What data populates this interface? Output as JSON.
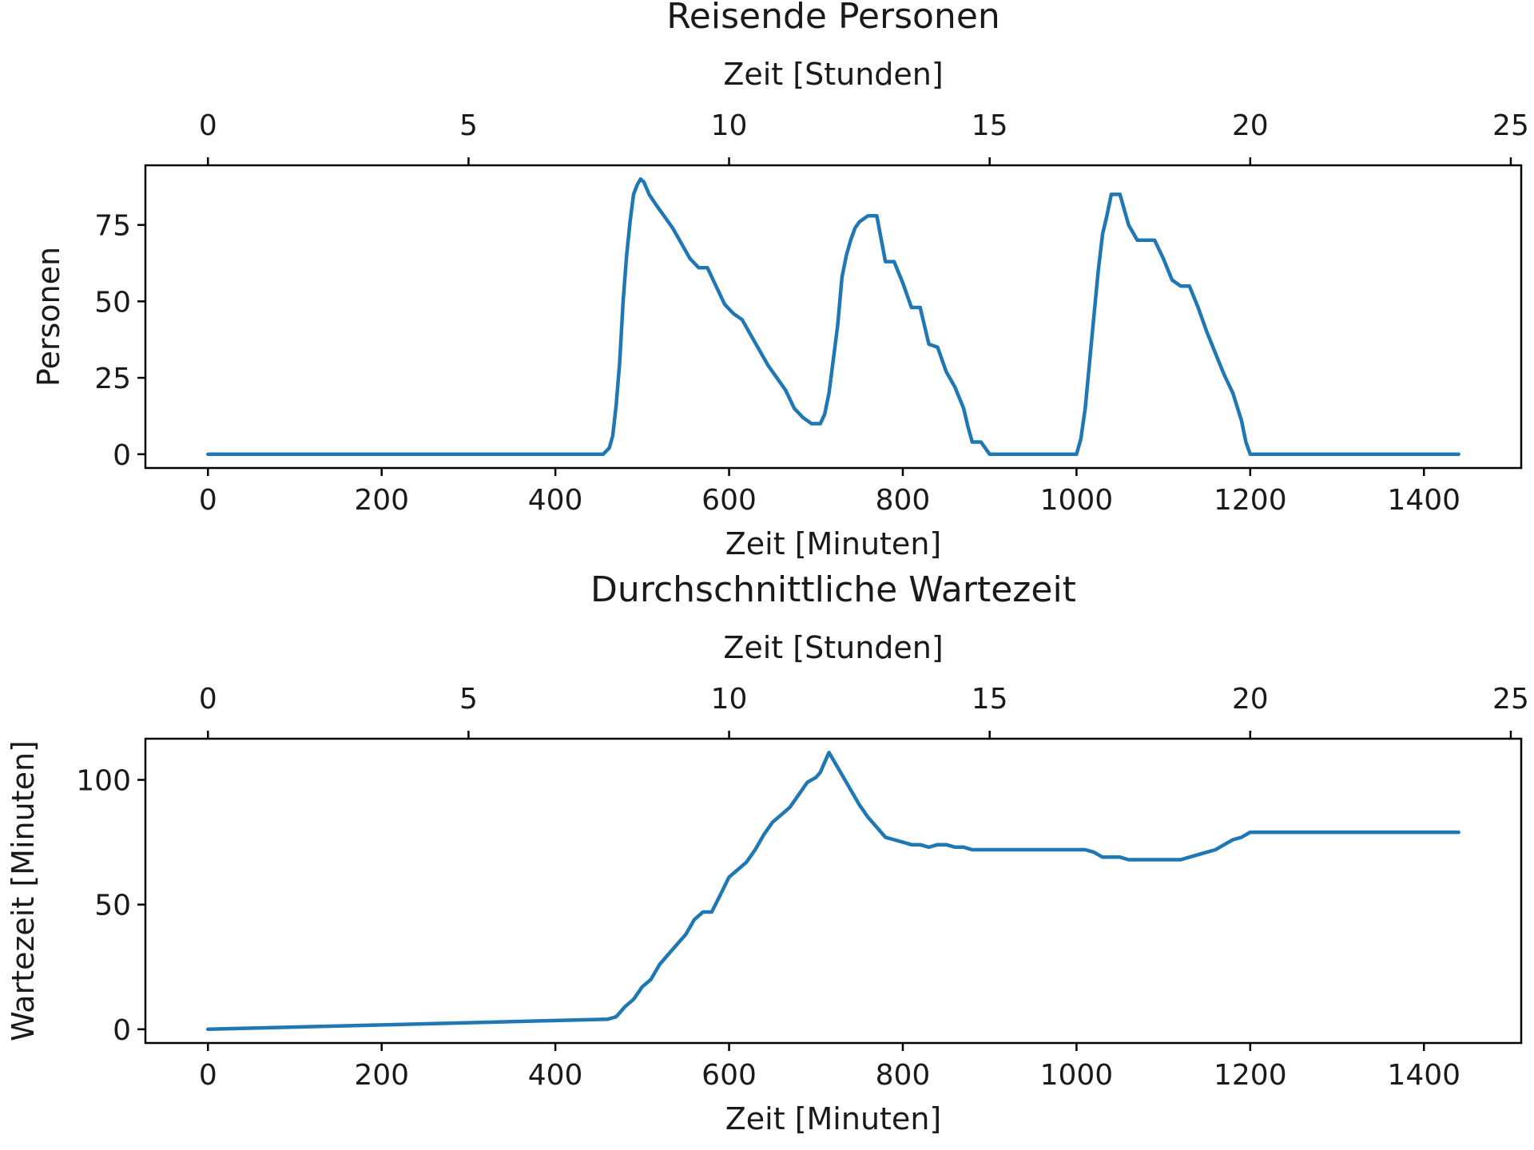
{
  "colors": {
    "series": "#1f77b4",
    "axes": "#000000",
    "background": "#ffffff"
  },
  "chart_data": [
    {
      "type": "line",
      "title": "Reisende Personen",
      "xlabel": "Zeit [Minuten]",
      "xlabel_top": "Zeit [Stunden]",
      "ylabel": "Personen",
      "xlim": [
        -72,
        1512
      ],
      "ylim": [
        -4.5,
        94.5
      ],
      "xticks": [
        0,
        200,
        400,
        600,
        800,
        1000,
        1200,
        1400
      ],
      "xticks_top": [
        0,
        5,
        10,
        15,
        20,
        25
      ],
      "yticks": [
        0,
        25,
        50,
        75
      ],
      "grid": false,
      "series": [
        {
          "x": [
            0,
            455,
            462,
            466,
            470,
            474,
            478,
            482,
            486,
            490,
            494,
            498,
            502,
            508,
            515,
            525,
            535,
            545,
            555,
            565,
            575,
            585,
            595,
            605,
            615,
            625,
            635,
            645,
            655,
            665,
            675,
            685,
            690,
            695,
            700,
            705,
            710,
            715,
            720,
            725,
            730,
            735,
            740,
            745,
            750,
            755,
            760,
            765,
            770,
            780,
            790,
            800,
            810,
            820,
            830,
            840,
            850,
            860,
            870,
            875,
            880,
            890,
            900,
            1000,
            1005,
            1010,
            1015,
            1020,
            1025,
            1030,
            1035,
            1040,
            1050,
            1060,
            1070,
            1080,
            1090,
            1100,
            1110,
            1120,
            1130,
            1140,
            1150,
            1160,
            1170,
            1180,
            1190,
            1195,
            1200,
            1440
          ],
          "y": [
            0,
            0,
            2,
            6,
            16,
            30,
            50,
            65,
            76,
            85,
            88,
            90,
            89,
            85,
            82,
            78,
            74,
            69,
            64,
            61,
            61,
            55,
            49,
            46,
            44,
            39,
            34,
            29,
            25,
            21,
            15,
            12,
            11,
            10,
            10,
            10,
            13,
            20,
            31,
            42,
            58,
            65,
            70,
            74,
            76,
            77,
            78,
            78,
            78,
            63,
            63,
            56,
            48,
            48,
            36,
            35,
            27,
            22,
            15,
            9,
            4,
            4,
            0,
            0,
            5,
            15,
            30,
            45,
            60,
            72,
            78,
            85,
            85,
            75,
            70,
            70,
            70,
            64,
            57,
            55,
            55,
            48,
            40,
            33,
            26,
            20,
            11,
            4,
            0,
            0
          ]
        }
      ]
    },
    {
      "type": "line",
      "title": "Durchschnittliche Wartezeit",
      "xlabel": "Zeit [Minuten]",
      "xlabel_top": "Zeit [Stunden]",
      "ylabel": "Wartezeit [Minuten]",
      "xlim": [
        -72,
        1512
      ],
      "ylim": [
        -5.5,
        116.5
      ],
      "xticks": [
        0,
        200,
        400,
        600,
        800,
        1000,
        1200,
        1400
      ],
      "xticks_top": [
        0,
        5,
        10,
        15,
        20,
        25
      ],
      "yticks": [
        0,
        50,
        100
      ],
      "grid": false,
      "series": [
        {
          "x": [
            0,
            460,
            470,
            480,
            490,
            500,
            510,
            520,
            530,
            540,
            550,
            560,
            570,
            580,
            590,
            600,
            610,
            620,
            630,
            640,
            650,
            660,
            670,
            680,
            690,
            700,
            705,
            710,
            715,
            720,
            730,
            740,
            750,
            760,
            770,
            780,
            790,
            800,
            810,
            820,
            830,
            840,
            850,
            860,
            870,
            880,
            900,
            950,
            1000,
            1010,
            1020,
            1030,
            1040,
            1050,
            1060,
            1070,
            1080,
            1090,
            1100,
            1110,
            1120,
            1130,
            1140,
            1150,
            1160,
            1170,
            1180,
            1190,
            1200,
            1210,
            1440
          ],
          "y": [
            0,
            4,
            5,
            9,
            12,
            17,
            20,
            26,
            30,
            34,
            38,
            44,
            47,
            47,
            54,
            61,
            64,
            67,
            72,
            78,
            83,
            86,
            89,
            94,
            99,
            101,
            103,
            107,
            111,
            108,
            102,
            96,
            90,
            85,
            81,
            77,
            76,
            75,
            74,
            74,
            73,
            74,
            74,
            73,
            73,
            72,
            72,
            72,
            72,
            72,
            71,
            69,
            69,
            69,
            68,
            68,
            68,
            68,
            68,
            68,
            68,
            69,
            70,
            71,
            72,
            74,
            76,
            77,
            79,
            79,
            79
          ]
        }
      ]
    }
  ]
}
